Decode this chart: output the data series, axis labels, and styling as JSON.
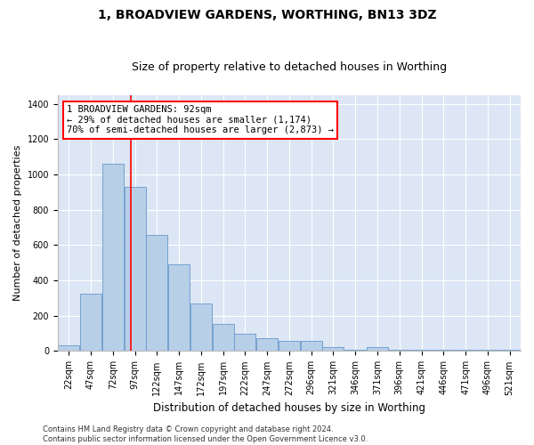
{
  "title": "1, BROADVIEW GARDENS, WORTHING, BN13 3DZ",
  "subtitle": "Size of property relative to detached houses in Worthing",
  "xlabel": "Distribution of detached houses by size in Worthing",
  "ylabel": "Number of detached properties",
  "bar_labels": [
    "22sqm",
    "47sqm",
    "72sqm",
    "97sqm",
    "122sqm",
    "147sqm",
    "172sqm",
    "197sqm",
    "222sqm",
    "247sqm",
    "272sqm",
    "296sqm",
    "321sqm",
    "346sqm",
    "371sqm",
    "396sqm",
    "421sqm",
    "446sqm",
    "471sqm",
    "496sqm",
    "521sqm"
  ],
  "bar_values": [
    30,
    325,
    1060,
    930,
    660,
    490,
    270,
    155,
    100,
    75,
    60,
    60,
    20,
    5,
    20,
    5,
    5,
    5,
    5,
    5,
    5
  ],
  "bar_color": "#b8cfe8",
  "bar_edge_color": "#6699cc",
  "background_color": "#dce6f5",
  "grid_color": "#ffffff",
  "ylim": [
    0,
    1450
  ],
  "yticks": [
    0,
    200,
    400,
    600,
    800,
    1000,
    1200,
    1400
  ],
  "property_label": "1 BROADVIEW GARDENS: 92sqm",
  "pct_smaller": 29,
  "n_smaller": 1174,
  "pct_larger": 70,
  "n_larger": 2873,
  "vline_bin_index": 2,
  "footer": "Contains HM Land Registry data © Crown copyright and database right 2024.\nContains public sector information licensed under the Open Government Licence v3.0.",
  "title_fontsize": 10,
  "subtitle_fontsize": 9,
  "tick_fontsize": 7,
  "ylabel_fontsize": 8,
  "xlabel_fontsize": 8.5,
  "footer_fontsize": 6,
  "annot_fontsize": 7.5
}
